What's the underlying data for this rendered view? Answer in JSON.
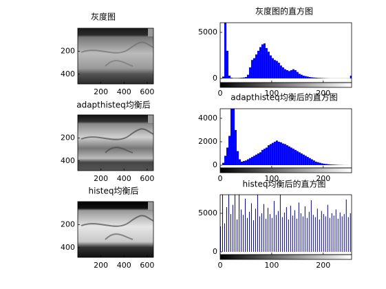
{
  "chart_data": [
    {
      "type": "image",
      "title": "灰度图",
      "xlim": [
        0,
        654
      ],
      "ylim": [
        0,
        485
      ],
      "xticks": [
        200,
        400,
        600
      ],
      "yticks": [
        200,
        400
      ],
      "shade": "soft"
    },
    {
      "type": "histogram",
      "title": "灰度图的直方图",
      "color": "#0000ff",
      "xlim": [
        0,
        255
      ],
      "ylim": [
        -450,
        6050
      ],
      "xticks": [
        0,
        100,
        200
      ],
      "yticks": [
        0,
        5000
      ],
      "bins": [
        0,
        4,
        8,
        12,
        16,
        20,
        24,
        28,
        32,
        36,
        40,
        44,
        48,
        52,
        56,
        60,
        64,
        68,
        72,
        76,
        80,
        84,
        88,
        92,
        96,
        100,
        104,
        108,
        112,
        116,
        120,
        124,
        128,
        132,
        136,
        140,
        144,
        148,
        152,
        156,
        160,
        164,
        168,
        172,
        176,
        180,
        184,
        188,
        192,
        196,
        200,
        204,
        208,
        212,
        216,
        220,
        224,
        228,
        232,
        236,
        240,
        244,
        248,
        252,
        256
      ],
      "values": [
        0,
        200,
        6100,
        3000,
        300,
        80,
        50,
        50,
        50,
        60,
        80,
        100,
        150,
        400,
        1200,
        2000,
        2200,
        2600,
        3000,
        3400,
        3700,
        3800,
        3300,
        2900,
        2500,
        2200,
        2000,
        1900,
        1700,
        1400,
        1200,
        1000,
        900,
        800,
        900,
        1000,
        900,
        700,
        500,
        400,
        300,
        250,
        200,
        150,
        120,
        100,
        80,
        60,
        50,
        40,
        30,
        20,
        15,
        10,
        10,
        10,
        10,
        10,
        10,
        10,
        10,
        10,
        10,
        300
      ]
    },
    {
      "type": "image",
      "title": "adapthisteq均衡后",
      "xlim": [
        0,
        654
      ],
      "ylim": [
        0,
        485
      ],
      "xticks": [
        200,
        400,
        600
      ],
      "yticks": [
        200,
        400
      ],
      "shade": "contrast"
    },
    {
      "type": "histogram",
      "title": "adapthisteq均衡后的直方图",
      "color": "#0000ff",
      "xlim": [
        0,
        255
      ],
      "ylim": [
        -235,
        4820
      ],
      "xticks": [
        0,
        100,
        200
      ],
      "yticks": [
        0,
        2000,
        4000
      ],
      "bins": [
        0,
        4,
        8,
        12,
        16,
        20,
        24,
        28,
        32,
        36,
        40,
        44,
        48,
        52,
        56,
        60,
        64,
        68,
        72,
        76,
        80,
        84,
        88,
        92,
        96,
        100,
        104,
        108,
        112,
        116,
        120,
        124,
        128,
        132,
        136,
        140,
        144,
        148,
        152,
        156,
        160,
        164,
        168,
        172,
        176,
        180,
        184,
        188,
        192,
        196,
        200,
        204,
        208,
        212,
        216,
        220,
        224,
        228,
        232,
        236,
        240,
        244,
        248,
        252,
        256
      ],
      "values": [
        0,
        200,
        800,
        1500,
        2500,
        5200,
        5200,
        3000,
        1200,
        500,
        300,
        350,
        400,
        500,
        600,
        700,
        800,
        900,
        1000,
        1100,
        1300,
        1400,
        1500,
        1700,
        1800,
        1900,
        2000,
        2100,
        2000,
        1950,
        1850,
        1800,
        1700,
        1600,
        1500,
        1400,
        1300,
        1200,
        1100,
        1000,
        900,
        800,
        700,
        600,
        500,
        400,
        300,
        250,
        200,
        150,
        120,
        100,
        80,
        60,
        50,
        40,
        30,
        20,
        15,
        10,
        5,
        5,
        0,
        0
      ]
    },
    {
      "type": "image",
      "title": "histeq均衡后",
      "xlim": [
        0,
        654
      ],
      "ylim": [
        0,
        485
      ],
      "xticks": [
        200,
        400,
        600
      ],
      "yticks": [
        200,
        400
      ],
      "shade": "hard"
    },
    {
      "type": "stem",
      "title": "histeq均衡后的直方图",
      "color": "#000080",
      "xlim": [
        0,
        255
      ],
      "ylim": [
        -360,
        7410
      ],
      "xticks": [
        0,
        100,
        200
      ],
      "yticks": [
        0,
        5000
      ],
      "x": [
        0,
        4,
        8,
        12,
        16,
        20,
        24,
        28,
        32,
        36,
        40,
        44,
        48,
        52,
        56,
        60,
        64,
        68,
        72,
        76,
        80,
        84,
        88,
        92,
        96,
        100,
        104,
        108,
        112,
        116,
        120,
        124,
        128,
        132,
        136,
        140,
        144,
        148,
        152,
        156,
        160,
        164,
        168,
        172,
        176,
        180,
        184,
        188,
        192,
        196,
        200,
        204,
        208,
        212,
        216,
        220,
        224,
        228,
        232,
        236,
        240,
        244,
        248,
        252
      ],
      "values": [
        3300,
        7600,
        3700,
        5800,
        7600,
        4900,
        6100,
        7600,
        4200,
        7600,
        5500,
        4800,
        6900,
        4400,
        5200,
        6300,
        4100,
        5600,
        7600,
        4600,
        5000,
        6200,
        4300,
        5700,
        4900,
        4400,
        6600,
        4800,
        5300,
        7600,
        4500,
        5100,
        5800,
        4200,
        6000,
        4700,
        5400,
        4300,
        6400,
        5000,
        4600,
        5900,
        4400,
        5200,
        6700,
        4800,
        4500,
        5600,
        4200,
        5300,
        4900,
        4600,
        6100,
        4400,
        5000,
        4700,
        5500,
        4300,
        5100,
        4600,
        4900,
        6800,
        4500,
        5000
      ]
    }
  ]
}
